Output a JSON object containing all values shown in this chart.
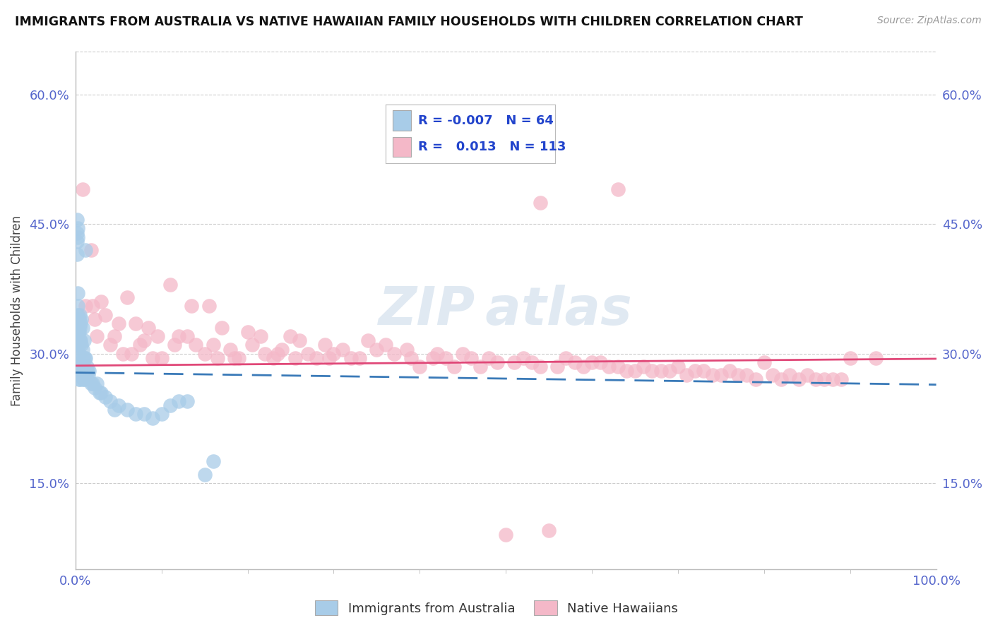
{
  "title": "IMMIGRANTS FROM AUSTRALIA VS NATIVE HAWAIIAN FAMILY HOUSEHOLDS WITH CHILDREN CORRELATION CHART",
  "source": "Source: ZipAtlas.com",
  "ylabel": "Family Households with Children",
  "xlim": [
    0.0,
    1.0
  ],
  "ylim": [
    0.05,
    0.65
  ],
  "yticks": [
    0.15,
    0.3,
    0.45,
    0.6
  ],
  "ytick_labels": [
    "15.0%",
    "30.0%",
    "45.0%",
    "60.0%"
  ],
  "xticks": [
    0.0,
    1.0
  ],
  "xtick_labels": [
    "0.0%",
    "100.0%"
  ],
  "legend_r_blue": "-0.007",
  "legend_n_blue": "64",
  "legend_r_pink": "0.013",
  "legend_n_pink": "113",
  "blue_color": "#a8cce8",
  "pink_color": "#f4b8c8",
  "blue_line_color": "#3a7ab8",
  "pink_line_color": "#e04878",
  "grid_color": "#cccccc",
  "background_color": "#ffffff",
  "blue_scatter_x": [
    0.002,
    0.002,
    0.002,
    0.002,
    0.003,
    0.003,
    0.003,
    0.003,
    0.003,
    0.003,
    0.003,
    0.003,
    0.003,
    0.004,
    0.004,
    0.004,
    0.004,
    0.004,
    0.004,
    0.005,
    0.005,
    0.005,
    0.005,
    0.005,
    0.006,
    0.006,
    0.006,
    0.007,
    0.007,
    0.007,
    0.008,
    0.008,
    0.008,
    0.009,
    0.009,
    0.01,
    0.01,
    0.011,
    0.012,
    0.012,
    0.013,
    0.014,
    0.015,
    0.016,
    0.018,
    0.02,
    0.022,
    0.025,
    0.028,
    0.03,
    0.035,
    0.04,
    0.045,
    0.05,
    0.06,
    0.07,
    0.08,
    0.09,
    0.1,
    0.11,
    0.12,
    0.13,
    0.15,
    0.16
  ],
  "blue_scatter_y": [
    0.455,
    0.44,
    0.43,
    0.415,
    0.445,
    0.435,
    0.37,
    0.355,
    0.345,
    0.33,
    0.325,
    0.315,
    0.295,
    0.34,
    0.325,
    0.31,
    0.3,
    0.285,
    0.27,
    0.345,
    0.33,
    0.315,
    0.285,
    0.27,
    0.335,
    0.315,
    0.275,
    0.34,
    0.31,
    0.275,
    0.33,
    0.305,
    0.28,
    0.295,
    0.27,
    0.315,
    0.27,
    0.295,
    0.42,
    0.295,
    0.285,
    0.28,
    0.275,
    0.28,
    0.265,
    0.265,
    0.26,
    0.265,
    0.255,
    0.255,
    0.25,
    0.245,
    0.235,
    0.24,
    0.235,
    0.23,
    0.23,
    0.225,
    0.23,
    0.24,
    0.245,
    0.245,
    0.16,
    0.175
  ],
  "pink_scatter_x": [
    0.008,
    0.012,
    0.018,
    0.02,
    0.022,
    0.025,
    0.03,
    0.035,
    0.04,
    0.045,
    0.05,
    0.055,
    0.06,
    0.065,
    0.07,
    0.075,
    0.08,
    0.085,
    0.09,
    0.095,
    0.1,
    0.11,
    0.115,
    0.12,
    0.13,
    0.135,
    0.14,
    0.15,
    0.155,
    0.16,
    0.165,
    0.17,
    0.18,
    0.185,
    0.19,
    0.2,
    0.205,
    0.215,
    0.22,
    0.23,
    0.235,
    0.24,
    0.25,
    0.255,
    0.26,
    0.27,
    0.28,
    0.29,
    0.295,
    0.3,
    0.31,
    0.32,
    0.33,
    0.34,
    0.35,
    0.36,
    0.37,
    0.385,
    0.39,
    0.4,
    0.415,
    0.42,
    0.43,
    0.44,
    0.45,
    0.46,
    0.47,
    0.48,
    0.49,
    0.5,
    0.51,
    0.52,
    0.53,
    0.54,
    0.55,
    0.56,
    0.57,
    0.58,
    0.59,
    0.6,
    0.61,
    0.62,
    0.63,
    0.64,
    0.65,
    0.66,
    0.67,
    0.68,
    0.69,
    0.7,
    0.71,
    0.72,
    0.73,
    0.74,
    0.75,
    0.76,
    0.77,
    0.78,
    0.79,
    0.8,
    0.81,
    0.82,
    0.83,
    0.84,
    0.85,
    0.86,
    0.87,
    0.88,
    0.89,
    0.9,
    0.54,
    0.63,
    0.93
  ],
  "pink_scatter_y": [
    0.49,
    0.355,
    0.42,
    0.355,
    0.34,
    0.32,
    0.36,
    0.345,
    0.31,
    0.32,
    0.335,
    0.3,
    0.365,
    0.3,
    0.335,
    0.31,
    0.315,
    0.33,
    0.295,
    0.32,
    0.295,
    0.38,
    0.31,
    0.32,
    0.32,
    0.355,
    0.31,
    0.3,
    0.355,
    0.31,
    0.295,
    0.33,
    0.305,
    0.295,
    0.295,
    0.325,
    0.31,
    0.32,
    0.3,
    0.295,
    0.3,
    0.305,
    0.32,
    0.295,
    0.315,
    0.3,
    0.295,
    0.31,
    0.295,
    0.3,
    0.305,
    0.295,
    0.295,
    0.315,
    0.305,
    0.31,
    0.3,
    0.305,
    0.295,
    0.285,
    0.295,
    0.3,
    0.295,
    0.285,
    0.3,
    0.295,
    0.285,
    0.295,
    0.29,
    0.09,
    0.29,
    0.295,
    0.29,
    0.285,
    0.095,
    0.285,
    0.295,
    0.29,
    0.285,
    0.29,
    0.29,
    0.285,
    0.285,
    0.28,
    0.28,
    0.285,
    0.28,
    0.28,
    0.28,
    0.285,
    0.275,
    0.28,
    0.28,
    0.275,
    0.275,
    0.28,
    0.275,
    0.275,
    0.27,
    0.29,
    0.275,
    0.27,
    0.275,
    0.27,
    0.275,
    0.27,
    0.27,
    0.27,
    0.27,
    0.295,
    0.475,
    0.49,
    0.295
  ]
}
